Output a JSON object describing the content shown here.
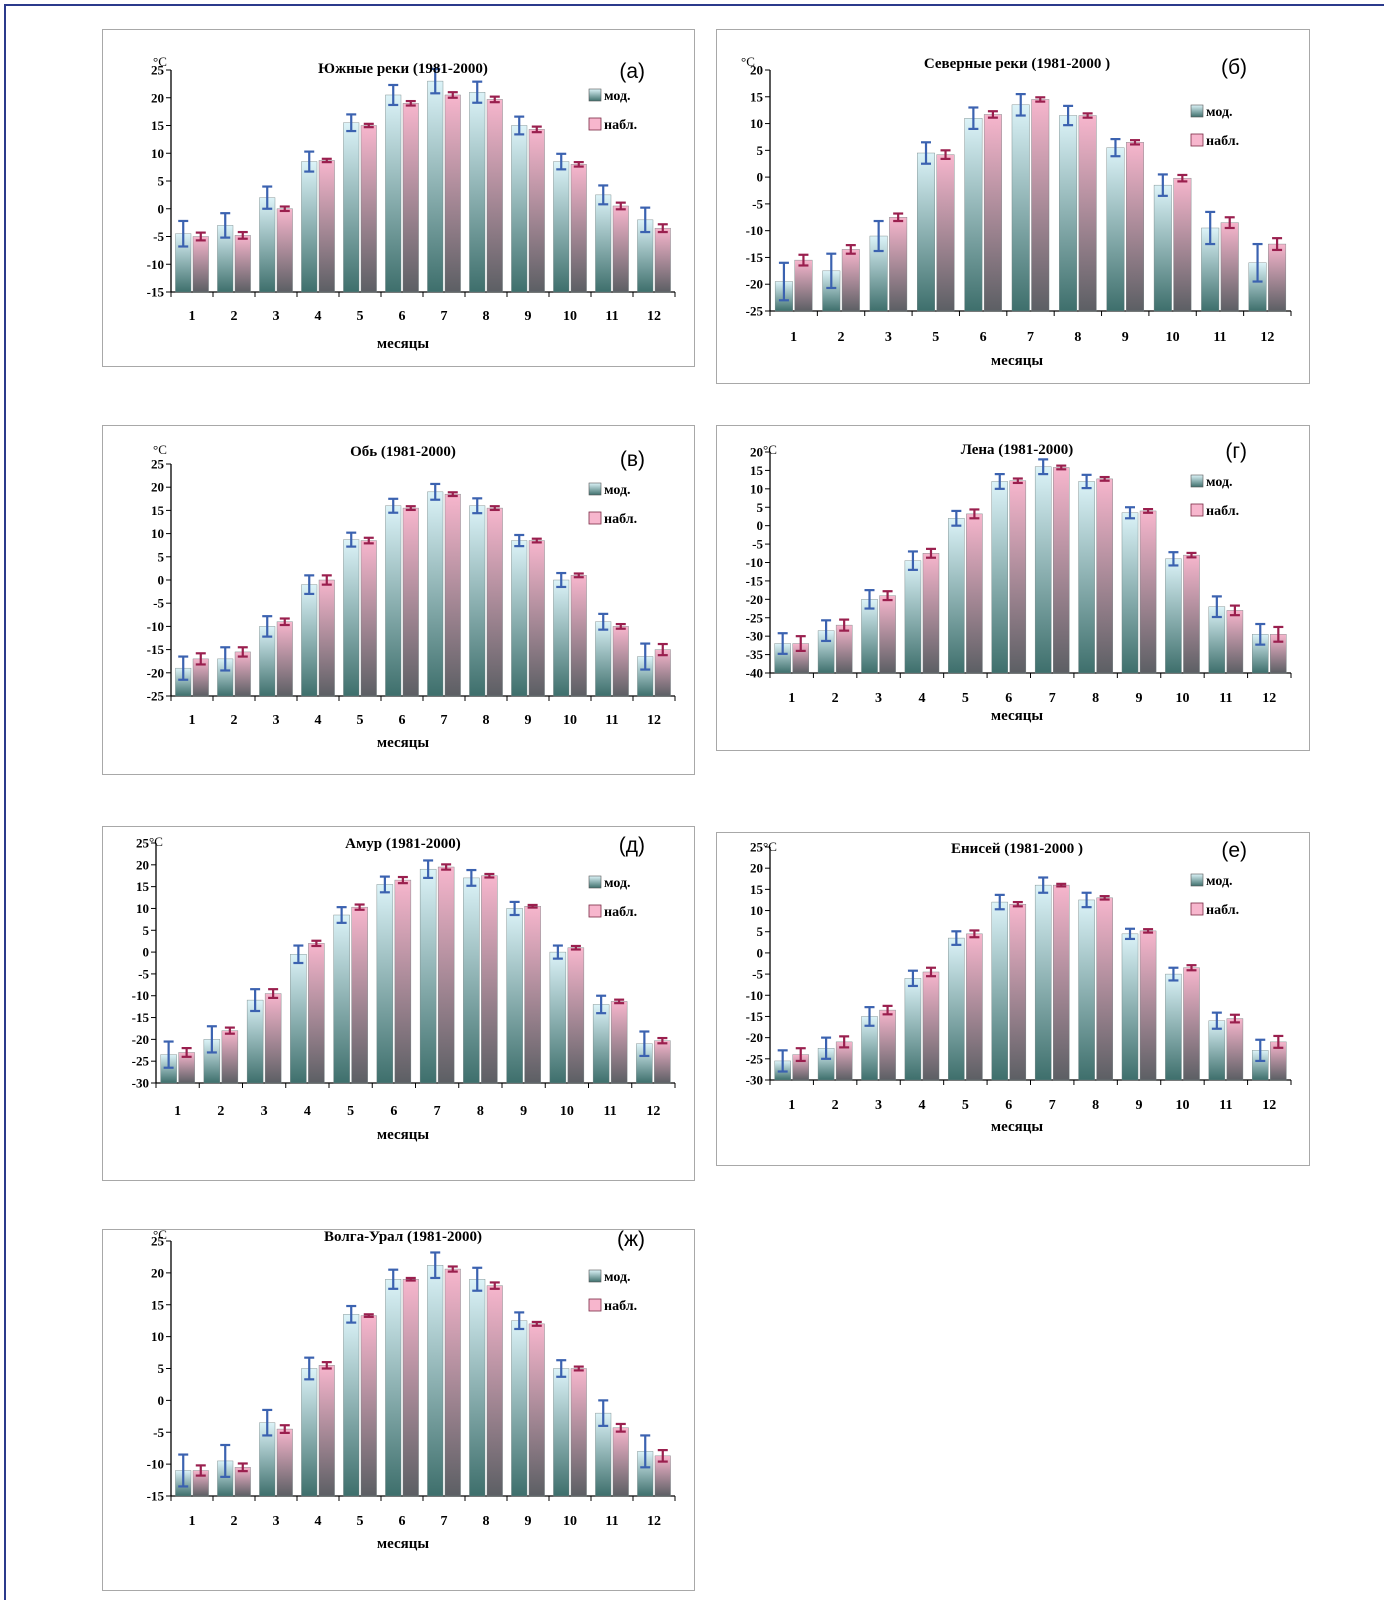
{
  "colors": {
    "frame": "#2b3a8c",
    "model_bar_top": "#dcf3f8",
    "model_bar_bottom": "#3e6f6c",
    "obs_bar_top": "#f7b6cd",
    "obs_bar_bottom": "#5c5f64",
    "model_err": "#3b62b0",
    "obs_err": "#9a1f4e"
  },
  "chart_data": [
    {
      "id": "a",
      "type": "bar",
      "letter": "(а)",
      "title": "Южные реки  (1981-2000)",
      "unit": "°C",
      "xlabel": "месяцы",
      "categories": [
        "1",
        "2",
        "3",
        "4",
        "5",
        "6",
        "7",
        "8",
        "9",
        "10",
        "11",
        "12"
      ],
      "ylim": [
        -15,
        25
      ],
      "yticks": [
        25,
        20,
        15,
        10,
        5,
        0,
        -5,
        -10,
        -15
      ],
      "legend": [
        "мод.",
        "набл."
      ],
      "series": [
        {
          "name": "мод.",
          "values": [
            -4.5,
            -3,
            2,
            8.5,
            15.5,
            20.5,
            23,
            21,
            15,
            8.5,
            2.5,
            -2
          ],
          "errors": [
            2.3,
            2.2,
            2,
            1.8,
            1.5,
            1.8,
            2.2,
            1.9,
            1.6,
            1.4,
            1.7,
            2.2
          ]
        },
        {
          "name": "набл.",
          "values": [
            -5,
            -4.8,
            0,
            8.7,
            15,
            19,
            20.5,
            19.7,
            14.3,
            8,
            0.5,
            -3.5
          ],
          "errors": [
            0.7,
            0.6,
            0.4,
            0.3,
            0.3,
            0.4,
            0.5,
            0.5,
            0.5,
            0.4,
            0.6,
            0.7
          ]
        }
      ]
    },
    {
      "id": "b",
      "type": "bar",
      "letter": "(б)",
      "title": "Северные реки  (1981-2000 )",
      "unit": "°C",
      "xlabel": "месяцы",
      "categories": [
        "1",
        "2",
        "3",
        "5",
        "6",
        "7",
        "8",
        "9",
        "10",
        "11",
        "12"
      ],
      "ylim": [
        -25,
        20
      ],
      "yticks": [
        20,
        15,
        10,
        5,
        0,
        -5,
        -10,
        -15,
        -20,
        -25
      ],
      "legend": [
        "мод.",
        "набл."
      ],
      "series": [
        {
          "name": "мод.",
          "values": [
            -19.5,
            -17.5,
            -11,
            4.5,
            11,
            13.5,
            11.5,
            5.5,
            -1.5,
            -9.5,
            -16
          ],
          "errors": [
            3.5,
            3.2,
            2.8,
            2,
            2,
            2,
            1.8,
            1.6,
            2,
            3,
            3.5
          ]
        },
        {
          "name": "набл.",
          "values": [
            -15.5,
            -13.5,
            -7.5,
            4.2,
            11.7,
            14.5,
            11.5,
            6.5,
            -0.2,
            -8.5,
            -12.5
          ],
          "errors": [
            1,
            0.8,
            0.7,
            0.8,
            0.6,
            0.4,
            0.4,
            0.4,
            0.6,
            1,
            1.1
          ]
        }
      ]
    },
    {
      "id": "v",
      "type": "bar",
      "letter": "(в)",
      "title": "Обь (1981-2000)",
      "unit": "°C",
      "xlabel": "месяцы",
      "categories": [
        "1",
        "2",
        "3",
        "4",
        "5",
        "6",
        "7",
        "8",
        "9",
        "10",
        "11",
        "12"
      ],
      "ylim": [
        -25,
        25
      ],
      "yticks": [
        25,
        20,
        15,
        10,
        5,
        0,
        -5,
        -10,
        -15,
        -20,
        -25
      ],
      "legend": [
        "мод.",
        "набл."
      ],
      "series": [
        {
          "name": "мод.",
          "values": [
            -19,
            -17,
            -10,
            -1,
            8.7,
            16,
            19,
            16,
            8.5,
            0,
            -9,
            -16.5
          ],
          "errors": [
            2.5,
            2.5,
            2.2,
            2,
            1.5,
            1.5,
            1.7,
            1.6,
            1.2,
            1.5,
            1.7,
            2.8
          ]
        },
        {
          "name": "набл.",
          "values": [
            -17,
            -15.5,
            -9,
            0,
            8.5,
            15.5,
            18.5,
            15.5,
            8.5,
            1,
            -10,
            -15
          ],
          "errors": [
            1.2,
            1,
            0.7,
            1,
            0.6,
            0.4,
            0.4,
            0.4,
            0.4,
            0.4,
            0.5,
            1.2
          ]
        }
      ]
    },
    {
      "id": "g",
      "type": "bar",
      "letter": "(г)",
      "title": "Лена (1981-2000)",
      "unit": "°C",
      "xlabel": "месяцы",
      "categories": [
        "1",
        "2",
        "3",
        "4",
        "5",
        "6",
        "7",
        "8",
        "9",
        "10",
        "11",
        "12"
      ],
      "ylim": [
        -40,
        20
      ],
      "yticks": [
        20,
        15,
        10,
        5,
        0,
        -5,
        -10,
        -15,
        -20,
        -25,
        -30,
        -35,
        -40
      ],
      "legend": [
        "мод.",
        "набл."
      ],
      "series": [
        {
          "name": "мод.",
          "values": [
            -32,
            -28.5,
            -20,
            -9.5,
            2,
            12,
            16,
            12,
            3.5,
            -9,
            -22,
            -29.5
          ],
          "errors": [
            2.8,
            2.8,
            2.5,
            2.5,
            2,
            2,
            2,
            1.8,
            1.5,
            1.8,
            2.8,
            2.8
          ]
        },
        {
          "name": "набл.",
          "values": [
            -32,
            -27,
            -19,
            -7.5,
            3.2,
            12.2,
            15.8,
            12.7,
            4,
            -8,
            -23,
            -29.5
          ],
          "errors": [
            2,
            1.5,
            1.2,
            1.2,
            1.2,
            0.6,
            0.5,
            0.5,
            0.5,
            0.6,
            1.3,
            2
          ]
        }
      ]
    },
    {
      "id": "d",
      "type": "bar",
      "letter": "(д)",
      "title": "Амур (1981-2000)",
      "unit": "°C",
      "xlabel": "месяцы",
      "categories": [
        "1",
        "2",
        "3",
        "4",
        "5",
        "6",
        "7",
        "8",
        "9",
        "10",
        "11",
        "12"
      ],
      "ylim": [
        -30,
        25
      ],
      "yticks": [
        25,
        20,
        15,
        10,
        5,
        0,
        -5,
        -10,
        -15,
        -20,
        -25,
        -30
      ],
      "legend": [
        "мод.",
        "набл."
      ],
      "series": [
        {
          "name": "мод.",
          "values": [
            -23.5,
            -20,
            -11,
            -0.5,
            8.5,
            15.5,
            19,
            17,
            10,
            0,
            -12,
            -21
          ],
          "errors": [
            3,
            3,
            2.5,
            2,
            1.8,
            1.8,
            2,
            1.8,
            1.5,
            1.5,
            2,
            2.8
          ]
        },
        {
          "name": "набл.",
          "values": [
            -23,
            -18,
            -9.5,
            2,
            10.3,
            16.5,
            19.5,
            17.5,
            10.5,
            1,
            -11.3,
            -20.3
          ],
          "errors": [
            1,
            0.7,
            1,
            0.6,
            0.6,
            0.7,
            0.6,
            0.4,
            0.3,
            0.4,
            0.4,
            0.6
          ]
        }
      ]
    },
    {
      "id": "e",
      "type": "bar",
      "letter": "(е)",
      "title": "Енисей  (1981-2000 )",
      "unit": "°C",
      "xlabel": "месяцы",
      "categories": [
        "1",
        "2",
        "3",
        "4",
        "5",
        "6",
        "7",
        "8",
        "9",
        "10",
        "11",
        "12"
      ],
      "ylim": [
        -30,
        25
      ],
      "yticks": [
        25,
        20,
        15,
        10,
        5,
        0,
        -5,
        -10,
        -15,
        -20,
        -25,
        -30
      ],
      "legend": [
        "мод.",
        "набл."
      ],
      "series": [
        {
          "name": "мод.",
          "values": [
            -25.5,
            -22.5,
            -15,
            -6,
            3.5,
            12,
            16,
            12.5,
            4.5,
            -5,
            -16,
            -23
          ],
          "errors": [
            2.5,
            2.5,
            2.2,
            1.8,
            1.6,
            1.7,
            1.8,
            1.7,
            1.2,
            1.5,
            1.9,
            2.5
          ]
        },
        {
          "name": "набл.",
          "values": [
            -24,
            -21,
            -13.5,
            -4.5,
            4.5,
            11.5,
            16,
            13,
            5.2,
            -3.5,
            -15.5,
            -21
          ],
          "errors": [
            1.5,
            1.3,
            1,
            1,
            0.8,
            0.5,
            0.3,
            0.4,
            0.4,
            0.6,
            0.9,
            1.4
          ]
        }
      ]
    },
    {
      "id": "zh",
      "type": "bar",
      "letter": "(ж)",
      "title": "Волга-Урал (1981-2000)",
      "unit": "°C",
      "xlabel": "месяцы",
      "categories": [
        "1",
        "2",
        "3",
        "4",
        "5",
        "6",
        "7",
        "8",
        "9",
        "10",
        "11",
        "12"
      ],
      "ylim": [
        -15,
        25
      ],
      "yticks": [
        25,
        20,
        15,
        10,
        5,
        0,
        -5,
        -10,
        -15
      ],
      "legend": [
        "мод.",
        "набл."
      ],
      "series": [
        {
          "name": "мод.",
          "values": [
            -11,
            -9.5,
            -3.5,
            5,
            13.5,
            19,
            21.2,
            19,
            12.5,
            5,
            -2,
            -8
          ],
          "errors": [
            2.5,
            2.5,
            2,
            1.7,
            1.3,
            1.5,
            2,
            1.8,
            1.3,
            1.3,
            2,
            2.5
          ]
        },
        {
          "name": "набл.",
          "values": [
            -11,
            -10.5,
            -4.5,
            5.5,
            13.3,
            19,
            20.6,
            18,
            12,
            5,
            -4.3,
            -8.7
          ],
          "errors": [
            0.8,
            0.6,
            0.6,
            0.5,
            0.2,
            0.2,
            0.4,
            0.5,
            0.3,
            0.3,
            0.6,
            0.9
          ]
        }
      ]
    }
  ]
}
